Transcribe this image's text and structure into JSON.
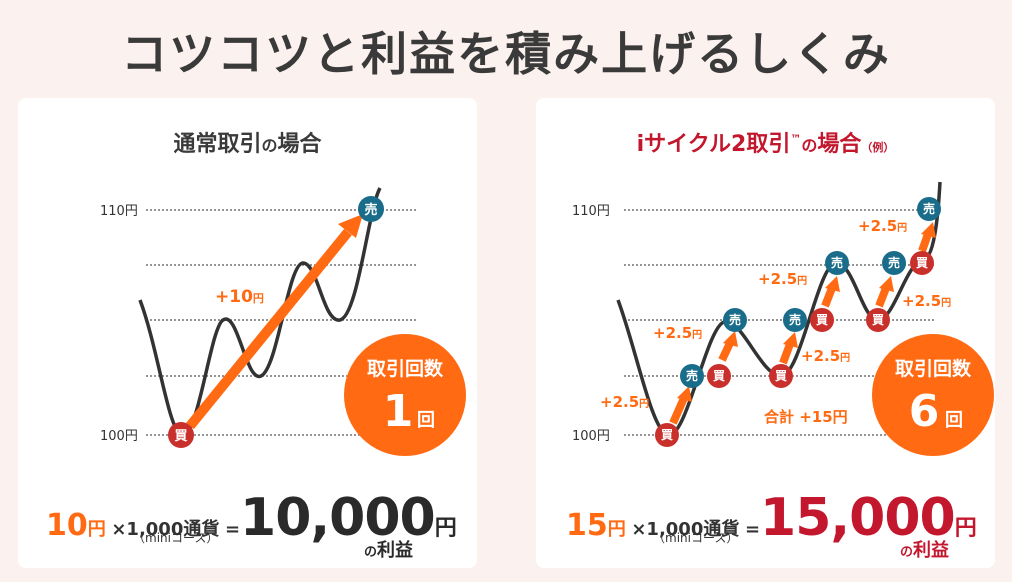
{
  "title": "コツコツと利益を積み上げるしくみ",
  "colors": {
    "orange": "#ff6a13",
    "red": "#c3172e",
    "blue": "#1a6d8a",
    "buy_red": "#c9302c"
  },
  "left": {
    "title_a": "通常取引",
    "title_b": "の",
    "title_c": "場合",
    "y_top_label": "110円",
    "y_bottom_label": "100円",
    "buy_label": "買",
    "sell_label": "売",
    "gain_value": "+10",
    "gain_unit": "円",
    "circle_label": "取引回数",
    "circle_count": "1",
    "circle_unit": "回",
    "formula": {
      "a_num": "10",
      "a_unit": "円",
      "times": "×",
      "b": "1,000通貨",
      "eq": "=",
      "result": "10,000",
      "result_unit": "円",
      "note": "（miniコース）",
      "profit_no": "の",
      "profit": "利益"
    }
  },
  "right": {
    "title_a": "iサイクル2取引",
    "title_tm": "™",
    "title_b": "の",
    "title_c": "場合",
    "title_d": "（例）",
    "y_top_label": "110円",
    "y_bottom_label": "100円",
    "buy_label": "買",
    "sell_label": "売",
    "gain_label": "+2.5",
    "gain_unit": "円",
    "total_label": "合計 +15円",
    "circle_label": "取引回数",
    "circle_count": "6",
    "circle_unit": "回",
    "formula": {
      "a_num": "15",
      "a_unit": "円",
      "times": "×",
      "b": "1,000通貨",
      "eq": "=",
      "result": "15,000",
      "result_unit": "円",
      "note": "（miniコース）",
      "profit_no": "の",
      "profit": "利益"
    }
  }
}
